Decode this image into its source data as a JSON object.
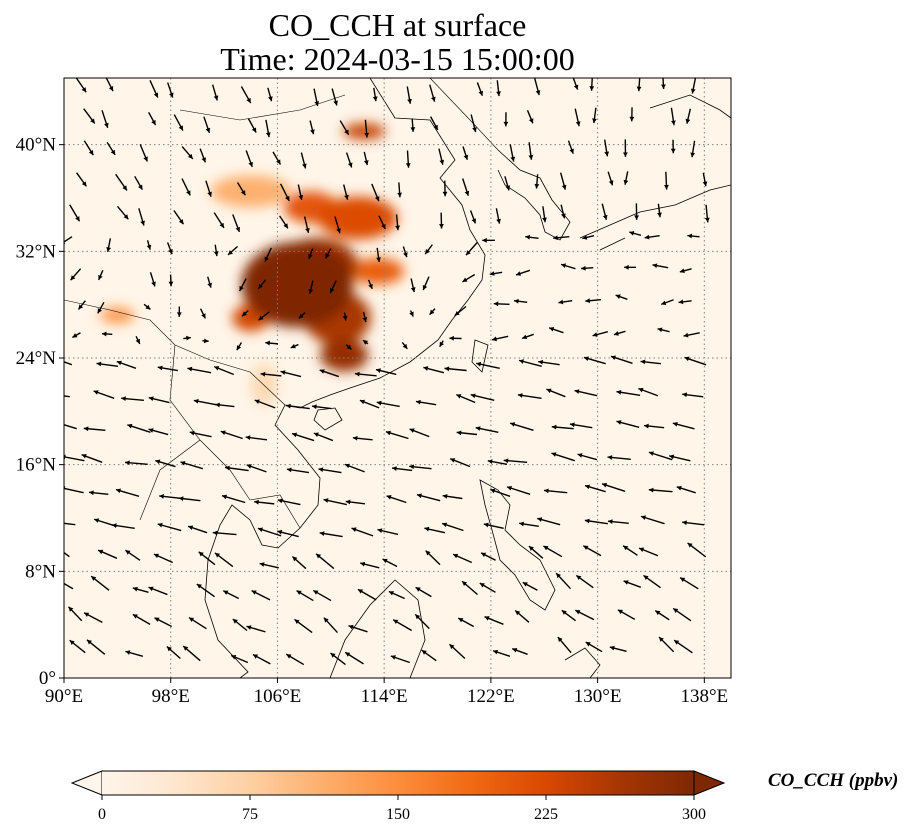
{
  "title": {
    "line1": "CO_CCH at surface",
    "line2": "Time: 2024-03-15 15:00:00"
  },
  "map": {
    "projection": "PlateCarree",
    "lon_range": [
      90,
      140
    ],
    "lat_range": [
      0,
      45
    ],
    "x_ticks": [
      {
        "value": 90,
        "label": "90°E"
      },
      {
        "value": 98,
        "label": "98°E"
      },
      {
        "value": 106,
        "label": "106°E"
      },
      {
        "value": 114,
        "label": "114°E"
      },
      {
        "value": 122,
        "label": "122°E"
      },
      {
        "value": 130,
        "label": "130°E"
      },
      {
        "value": 138,
        "label": "138°E"
      }
    ],
    "y_ticks": [
      {
        "value": 0,
        "label": "0°"
      },
      {
        "value": 8,
        "label": "8°N"
      },
      {
        "value": 16,
        "label": "16°N"
      },
      {
        "value": 24,
        "label": "24°N"
      },
      {
        "value": 32,
        "label": "32°N"
      },
      {
        "value": 40,
        "label": "40°N"
      }
    ],
    "gridlines": true,
    "wind_vectors": true,
    "colors": {
      "background": "#fff5e8",
      "coast": "#000000",
      "grid": "#808080",
      "arrow": "#000000"
    },
    "plume_regions": [
      {
        "lon": 107.5,
        "lat": 29.5,
        "rx": 4.2,
        "ry": 3.2,
        "level": 300
      },
      {
        "lon": 109.0,
        "lat": 31.0,
        "rx": 3.0,
        "ry": 2.0,
        "level": 270
      },
      {
        "lon": 110.5,
        "lat": 27.0,
        "rx": 2.5,
        "ry": 2.0,
        "level": 260
      },
      {
        "lon": 111.0,
        "lat": 24.2,
        "rx": 1.8,
        "ry": 1.2,
        "level": 280
      },
      {
        "lon": 112.0,
        "lat": 34.5,
        "rx": 3.0,
        "ry": 1.6,
        "level": 220
      },
      {
        "lon": 108.5,
        "lat": 35.3,
        "rx": 2.0,
        "ry": 1.2,
        "level": 210
      },
      {
        "lon": 104.0,
        "lat": 27.0,
        "rx": 1.4,
        "ry": 1.0,
        "level": 230
      },
      {
        "lon": 112.5,
        "lat": 41.0,
        "rx": 1.6,
        "ry": 0.6,
        "level": 240
      },
      {
        "lon": 104.0,
        "lat": 36.5,
        "rx": 3.0,
        "ry": 1.2,
        "level": 110
      },
      {
        "lon": 113.5,
        "lat": 30.5,
        "rx": 2.0,
        "ry": 1.0,
        "level": 200
      },
      {
        "lon": 94.0,
        "lat": 27.2,
        "rx": 1.3,
        "ry": 0.6,
        "level": 140
      },
      {
        "lon": 105.0,
        "lat": 22.0,
        "rx": 1.0,
        "ry": 1.6,
        "level": 60
      }
    ]
  },
  "colorbar": {
    "label": "CO_CCH (ppbv)",
    "min": 0,
    "max": 300,
    "ticks": [
      {
        "value": 0,
        "label": "0"
      },
      {
        "value": 75,
        "label": "75"
      },
      {
        "value": 150,
        "label": "150"
      },
      {
        "value": 225,
        "label": "225"
      },
      {
        "value": 300,
        "label": "300"
      }
    ],
    "extend": "both",
    "colormap": [
      "#fff5eb",
      "#fee6ce",
      "#fdd0a2",
      "#fdae6b",
      "#fd8d3c",
      "#f16913",
      "#d94801",
      "#a63603",
      "#7f2704"
    ]
  }
}
